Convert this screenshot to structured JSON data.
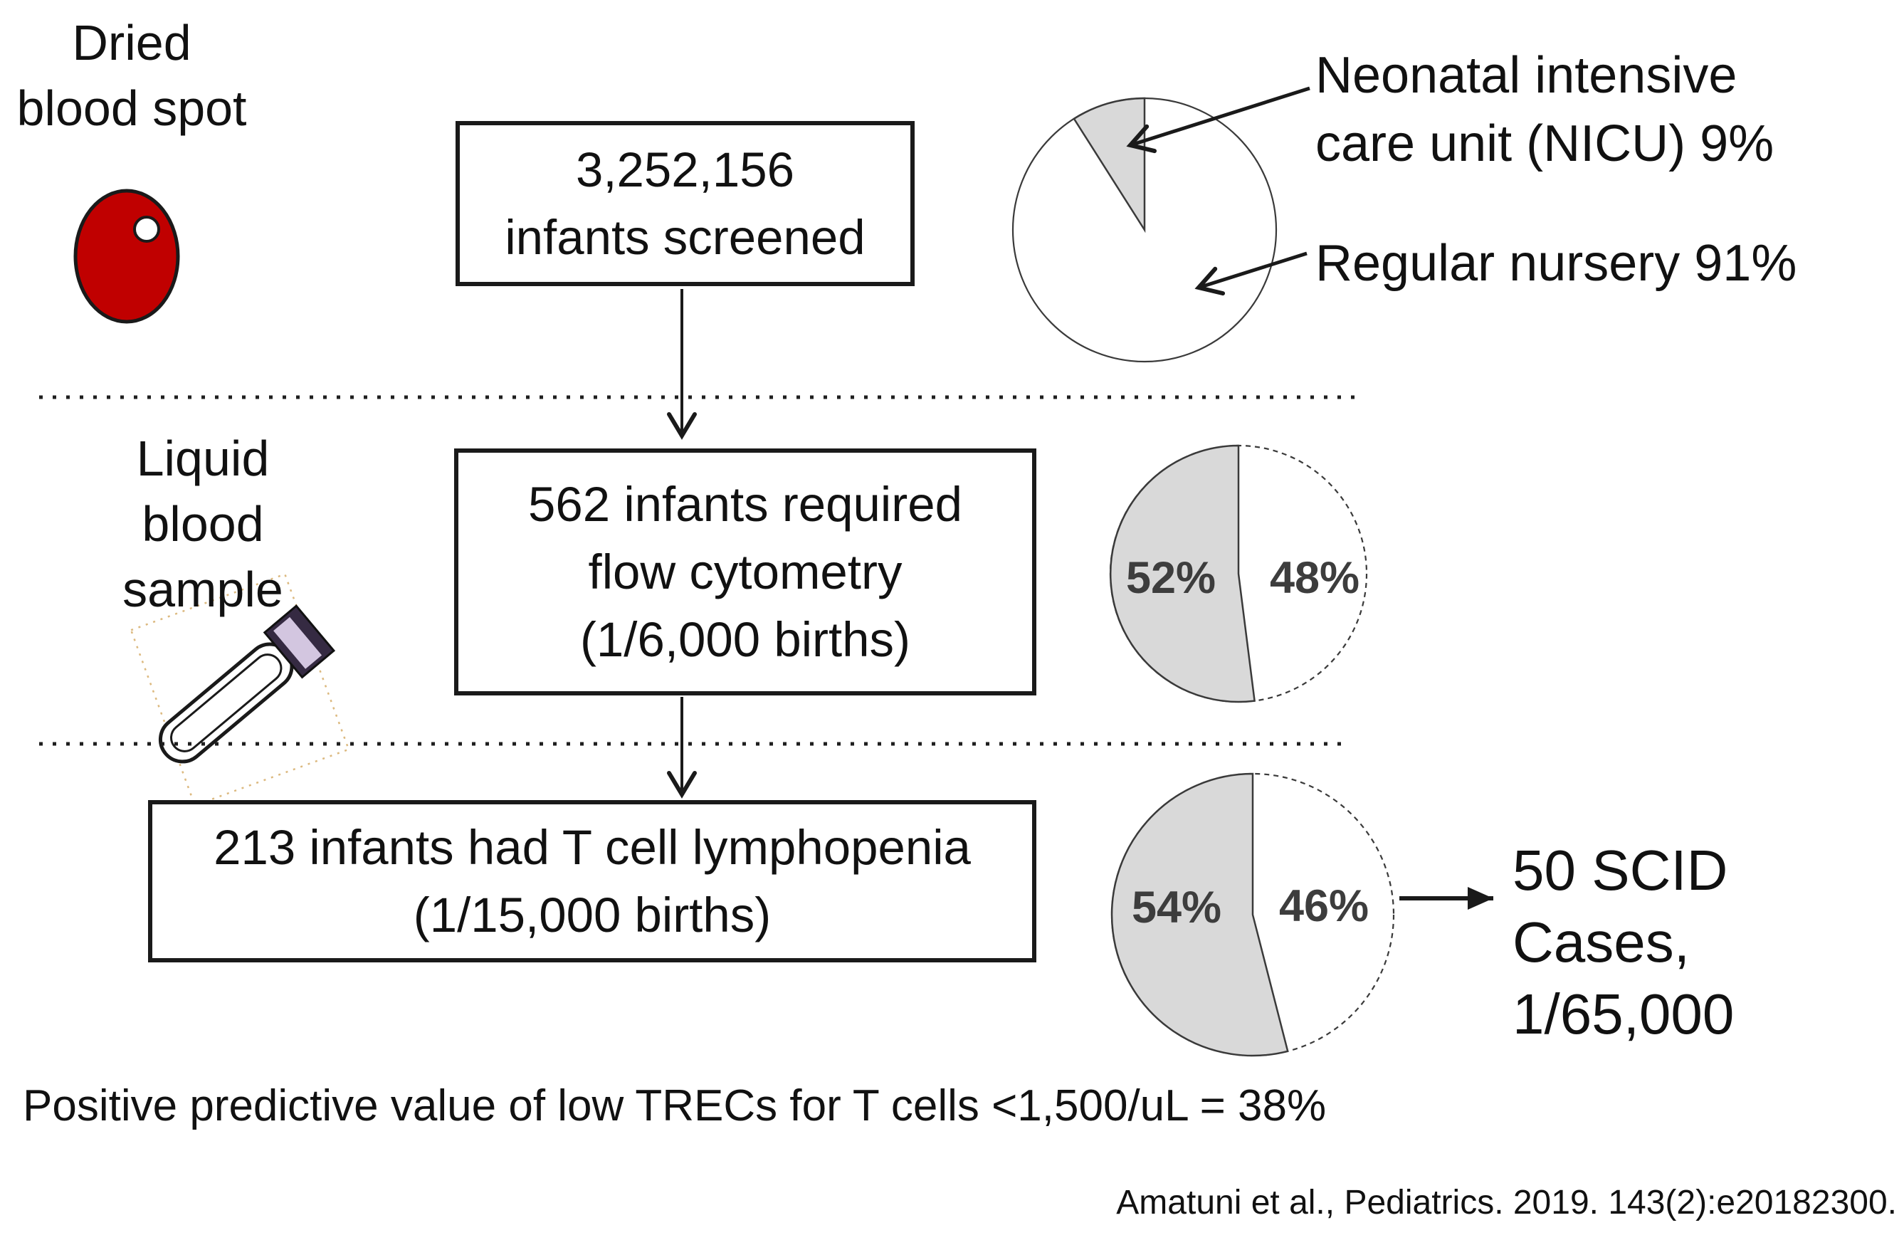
{
  "colors": {
    "blood_red": "#c00000",
    "pie_gray": "#d9d9d9",
    "pie_white": "#ffffff",
    "pie_outline": "#3a3a3a",
    "pie_label_color": "#3d3d3d",
    "tube_cap": "#352a42",
    "tube_band": "#d3c6e0",
    "selection_tan": "#dcb97f",
    "text_color": "#111111"
  },
  "icon_labels": {
    "dried": {
      "line1": "Dried",
      "line2": "blood spot"
    },
    "liquid": {
      "line1": "Liquid",
      "line2": "blood",
      "line3": "sample"
    }
  },
  "boxes": {
    "screened": {
      "line1": "3,252,156",
      "line2": "infants screened"
    },
    "flow": {
      "line1": "562 infants required",
      "line2": "flow cytometry",
      "line3": "(1/6,000 births)"
    },
    "lymphopenia": {
      "line1": "213 infants had T cell lymphopenia",
      "line2": "(1/15,000 births)"
    }
  },
  "pies": [
    {
      "name": "screening location",
      "slices": [
        {
          "pct": 9,
          "color": "#d9d9d9",
          "label": "Neonatal intensive care unit (NICU) 9%"
        },
        {
          "pct": 91,
          "color": "#ffffff",
          "label": "Regular nursery 91%"
        }
      ]
    },
    {
      "name": "flow cytometry split",
      "slices": [
        {
          "pct": 52,
          "color": "#d9d9d9",
          "label": "52%"
        },
        {
          "pct": 48,
          "color": "#ffffff",
          "label": "48%"
        }
      ]
    },
    {
      "name": "T cell lymphopenia split",
      "slices": [
        {
          "pct": 54,
          "color": "#d9d9d9",
          "label": "54%"
        },
        {
          "pct": 46,
          "color": "#ffffff",
          "label": "46%"
        }
      ]
    }
  ],
  "callouts": {
    "nicu": {
      "line1": "Neonatal intensive",
      "line2": "care unit (NICU) 9%"
    },
    "nursery": "Regular nursery 91%"
  },
  "scid_result": {
    "line1": "50 SCID",
    "line2": "Cases,",
    "line3": "1/65,000"
  },
  "ppv_note": "Positive predictive value of low TRECs for T cells <1,500/uL = 38%",
  "citation": "Amatuni et al., Pediatrics. 2019. 143(2):e20182300."
}
